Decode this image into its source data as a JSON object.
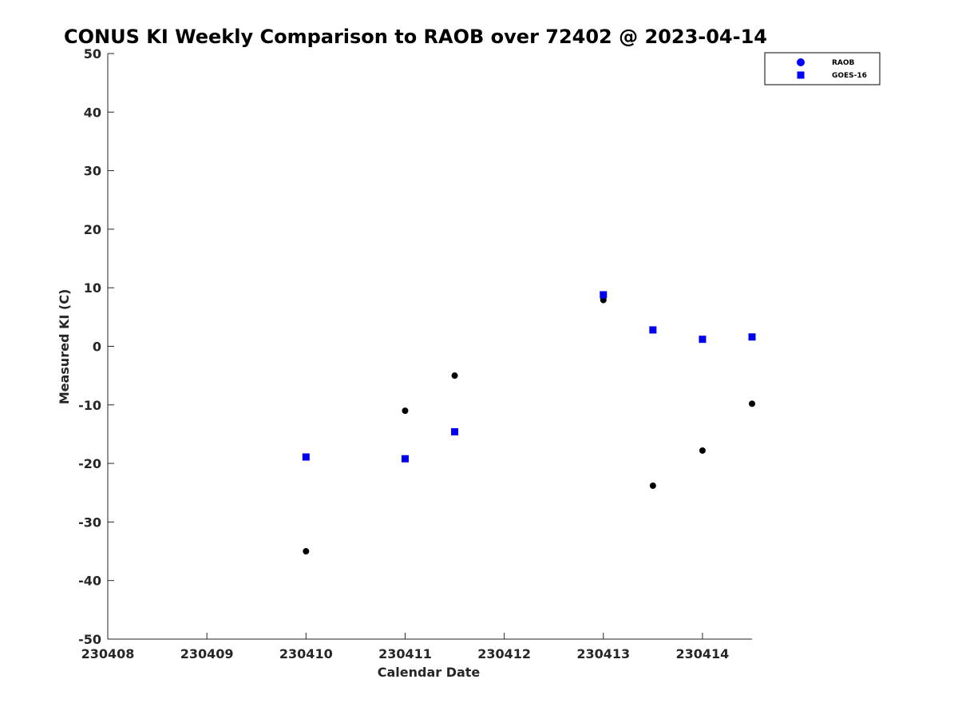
{
  "chart_data": {
    "type": "scatter",
    "title": "CONUS KI Weekly Comparison to RAOB over 72402 @ 2023-04-14",
    "xlabel": "Calendar Date",
    "ylabel": "Measured KI (C)",
    "xlim": [
      "230408",
      "230414 12Z"
    ],
    "ylim": [
      -50,
      50
    ],
    "x_ticks": [
      "230408",
      "230409",
      "230410",
      "230411",
      "230412",
      "230413",
      "230414"
    ],
    "y_ticks": [
      50,
      40,
      30,
      20,
      10,
      0,
      -10,
      -20,
      -30,
      -40,
      -50
    ],
    "grid": false,
    "legend_position": "top-right",
    "legend": [
      "RAOB",
      "GOES-16"
    ],
    "series": [
      {
        "name": "RAOB",
        "marker": "circle",
        "legend_color": "#0000ff",
        "color": "#000000",
        "points": [
          {
            "x": "230410 00Z",
            "y": -35.0
          },
          {
            "x": "230411 00Z",
            "y": -11.0
          },
          {
            "x": "230411 12Z",
            "y": -5.0
          },
          {
            "x": "230413 00Z",
            "y": 7.9
          },
          {
            "x": "230413 12Z",
            "y": -23.8
          },
          {
            "x": "230414 00Z",
            "y": -17.8
          },
          {
            "x": "230414 12Z",
            "y": -9.8
          }
        ]
      },
      {
        "name": "GOES-16",
        "marker": "square",
        "legend_color": "#0000ff",
        "color": "#0000ee",
        "points": [
          {
            "x": "230410 00Z",
            "y": -18.9
          },
          {
            "x": "230411 00Z",
            "y": -19.2
          },
          {
            "x": "230411 12Z",
            "y": -14.6
          },
          {
            "x": "230413 00Z",
            "y": 8.8
          },
          {
            "x": "230413 12Z",
            "y": 2.8
          },
          {
            "x": "230414 00Z",
            "y": 1.2
          },
          {
            "x": "230414 12Z",
            "y": 1.6
          }
        ]
      }
    ]
  }
}
